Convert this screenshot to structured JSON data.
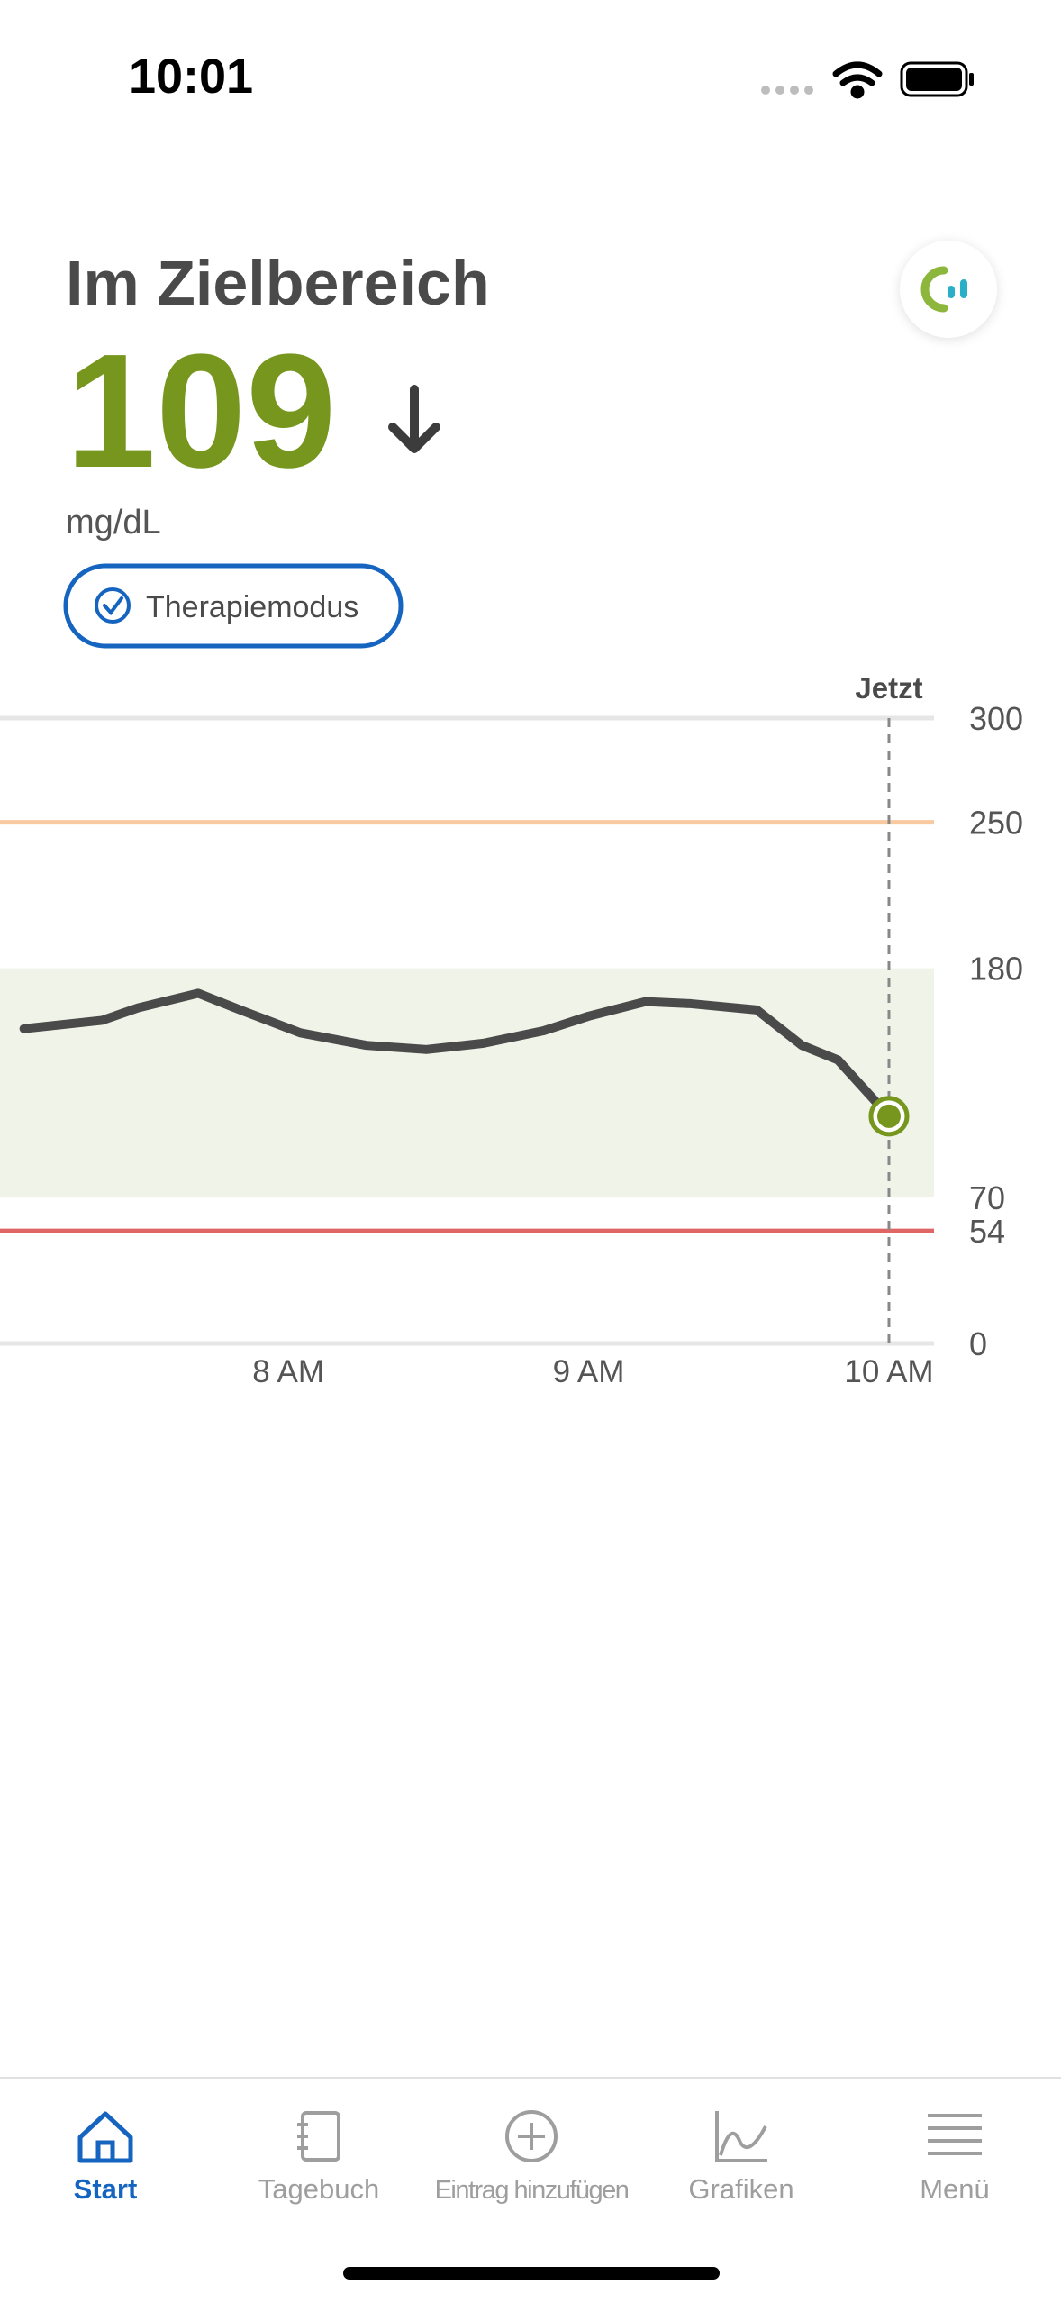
{
  "status_bar": {
    "time": "10:01"
  },
  "header": {
    "status": "Im Zielbereich",
    "value": 109,
    "unit": "mg/dL",
    "mode": "Therapiemodus"
  },
  "chart_data": {
    "type": "line",
    "x": [
      7.12,
      7.38,
      7.5,
      7.7,
      7.84,
      8.04,
      8.26,
      8.46,
      8.65,
      8.85,
      9.0,
      9.19,
      9.34,
      9.56,
      9.71,
      9.83,
      10.0
    ],
    "series": [
      {
        "color": "#4a4a4a",
        "values": [
          151,
          155,
          161,
          168,
          160,
          149,
          143,
          141,
          144,
          150,
          157,
          164,
          163,
          160,
          143,
          136,
          109
        ]
      }
    ],
    "xlim": [
      7.04,
      10.15
    ],
    "xticks": [
      {
        "value": 8,
        "label": "8 AM"
      },
      {
        "value": 9,
        "label": "9 AM"
      },
      {
        "value": 10,
        "label": "10 AM"
      }
    ],
    "ylim": [
      0,
      300
    ],
    "yticks": [
      0,
      54,
      70,
      180,
      250,
      300
    ],
    "target_range": [
      70,
      180
    ],
    "high_threshold": 250,
    "low_threshold": 54,
    "now": {
      "label": "Jetzt",
      "x": 10
    }
  },
  "nav": {
    "items": [
      "Start",
      "Tagebuch",
      "Eintrag hinzufügen",
      "Grafiken",
      "Menü"
    ]
  }
}
